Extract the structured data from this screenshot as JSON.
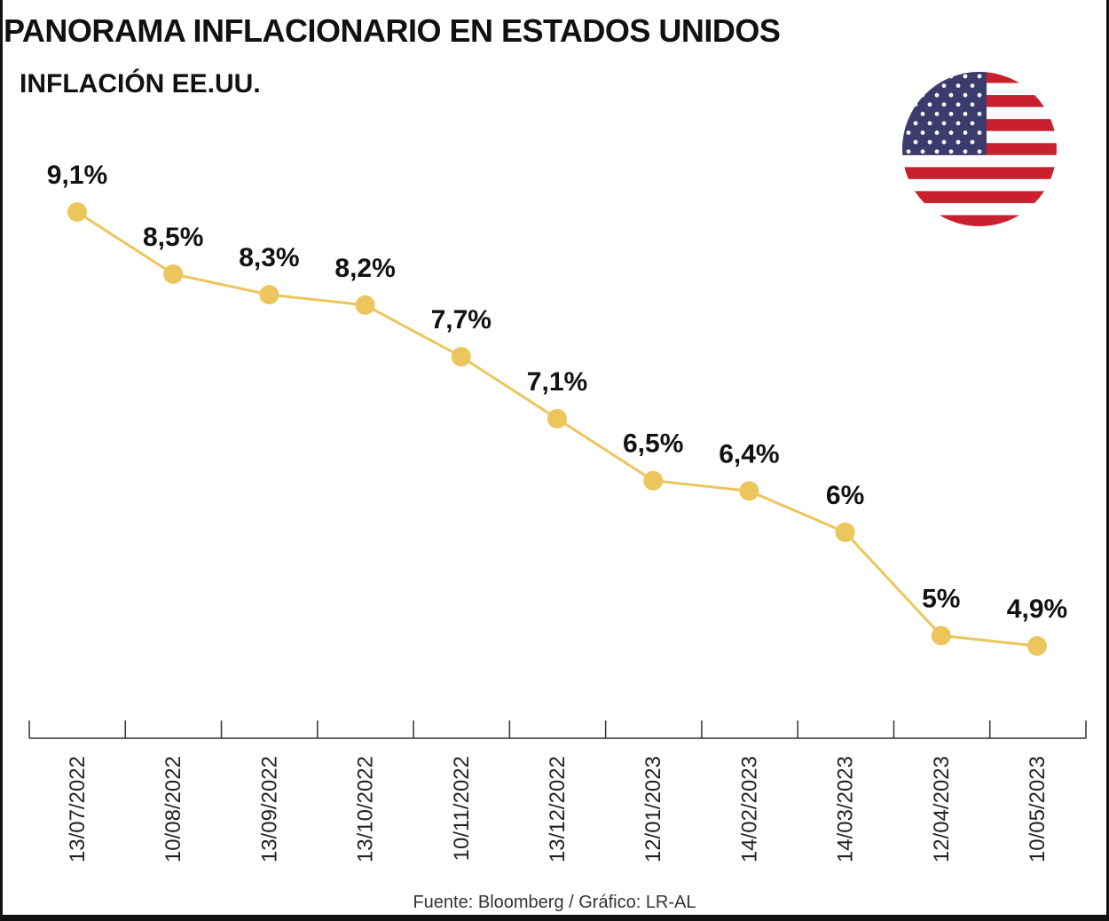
{
  "title": "PANORAMA INFLACIONARIO EN ESTADOS UNIDOS",
  "subtitle": "INFLACIÓN EE.UU.",
  "source": "Fuente: Bloomberg / Gráfico: LR-AL",
  "flag_icon": "usa-flag-icon",
  "colors": {
    "line": "#ecc55c",
    "text": "#111111",
    "axis": "#333333",
    "flag_red": "#c8202f",
    "flag_blue": "#3c3b6e"
  },
  "chart_data": {
    "type": "line",
    "title": "INFLACIÓN EE.UU.",
    "xlabel": "",
    "ylabel": "",
    "categories": [
      "13/07/2022",
      "10/08/2022",
      "13/09/2022",
      "13/10/2022",
      "10/11/2022",
      "13/12/2022",
      "12/01/2023",
      "14/02/2023",
      "14/03/2023",
      "12/04/2023",
      "10/05/2023"
    ],
    "values": [
      9.1,
      8.5,
      8.3,
      8.2,
      7.7,
      7.1,
      6.5,
      6.4,
      6.0,
      5.0,
      4.9
    ],
    "labels": [
      "9,1%",
      "8,5%",
      "8,3%",
      "8,2%",
      "7,7%",
      "7,1%",
      "6,5%",
      "6,4%",
      "6%",
      "5%",
      "4,9%"
    ],
    "ylim": [
      4.9,
      9.1
    ],
    "grid": false,
    "legend": "none"
  }
}
